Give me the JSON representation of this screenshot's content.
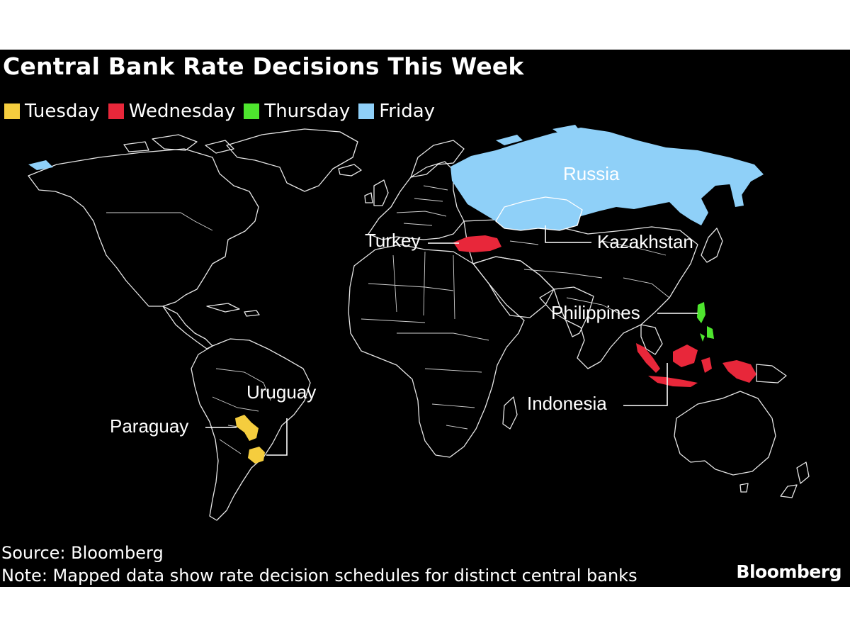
{
  "title": "Central Bank Rate Decisions This Week",
  "legend": [
    {
      "label": "Tuesday",
      "color": "#f5cd3e"
    },
    {
      "label": "Wednesday",
      "color": "#e8273a"
    },
    {
      "label": "Thursday",
      "color": "#4ee52e"
    },
    {
      "label": "Friday",
      "color": "#8fd0f8"
    }
  ],
  "countries": {
    "russia": {
      "label": "Russia",
      "day": "Friday"
    },
    "kazakhstan": {
      "label": "Kazakhstan",
      "day": "Friday"
    },
    "turkey": {
      "label": "Turkey",
      "day": "Wednesday"
    },
    "indonesia": {
      "label": "Indonesia",
      "day": "Wednesday"
    },
    "philippines": {
      "label": "Philippines",
      "day": "Thursday"
    },
    "paraguay": {
      "label": "Paraguay",
      "day": "Tuesday"
    },
    "uruguay": {
      "label": "Uruguay",
      "day": "Tuesday"
    }
  },
  "source": "Source: Bloomberg",
  "note": "Note: Mapped data show rate decision schedules for distinct central banks",
  "brand": "Bloomberg"
}
